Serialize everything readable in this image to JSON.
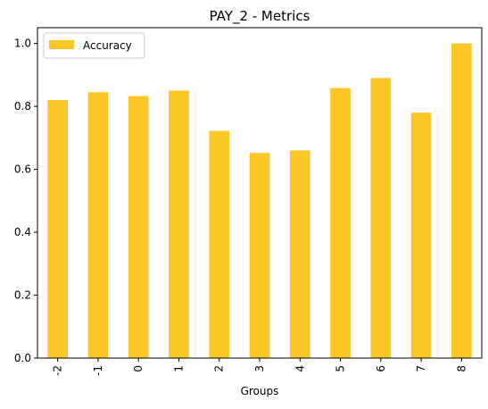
{
  "chart_data": {
    "type": "bar",
    "title": "PAY_2 - Metrics",
    "xlabel": "Groups",
    "ylabel": "",
    "categories": [
      "-2",
      "-1",
      "0",
      "1",
      "2",
      "3",
      "4",
      "5",
      "6",
      "7",
      "8"
    ],
    "series": [
      {
        "name": "Accuracy",
        "values": [
          0.82,
          0.845,
          0.833,
          0.85,
          0.722,
          0.652,
          0.66,
          0.858,
          0.89,
          0.78,
          1.0
        ]
      }
    ],
    "ylim": [
      0,
      1.05
    ],
    "yticks": [
      "0.0",
      "0.2",
      "0.4",
      "0.6",
      "0.8",
      "1.0"
    ],
    "grid": false,
    "legend_position": "top-left",
    "colors": {
      "bar": "#fcc726",
      "axis": "#000000",
      "legend_border": "#cccccc"
    }
  }
}
